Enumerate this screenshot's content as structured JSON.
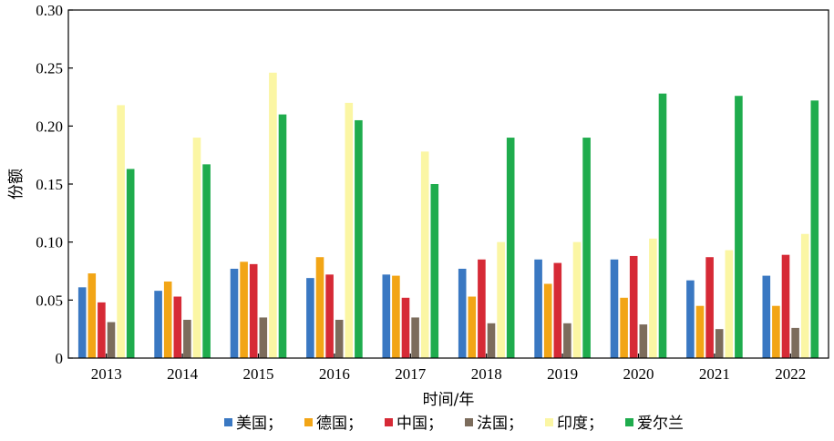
{
  "chart_data": {
    "type": "bar",
    "xlabel": "时间/年",
    "ylabel": "份额",
    "ylim": [
      0,
      0.3
    ],
    "y_ticks": [
      "0",
      "0.05",
      "0.10",
      "0.15",
      "0.20",
      "0.25",
      "0.30"
    ],
    "y_tick_values": [
      0,
      0.05,
      0.1,
      0.15,
      0.2,
      0.25,
      0.3
    ],
    "categories": [
      "2013",
      "2014",
      "2015",
      "2016",
      "2017",
      "2018",
      "2019",
      "2020",
      "2021",
      "2022"
    ],
    "grid": false,
    "legend_position": "bottom",
    "series": [
      {
        "name": "美国；",
        "color": "#3a78c2",
        "values": [
          0.061,
          0.058,
          0.077,
          0.069,
          0.072,
          0.077,
          0.085,
          0.085,
          0.067,
          0.071
        ]
      },
      {
        "name": "德国；",
        "color": "#f2a516",
        "values": [
          0.073,
          0.066,
          0.083,
          0.087,
          0.071,
          0.053,
          0.064,
          0.052,
          0.045,
          0.045
        ]
      },
      {
        "name": "中国；",
        "color": "#d62a36",
        "values": [
          0.048,
          0.053,
          0.081,
          0.072,
          0.052,
          0.085,
          0.082,
          0.088,
          0.087,
          0.089
        ]
      },
      {
        "name": "法国；",
        "color": "#7c6c5c",
        "values": [
          0.031,
          0.033,
          0.035,
          0.033,
          0.035,
          0.03,
          0.03,
          0.029,
          0.025,
          0.026
        ]
      },
      {
        "name": "印度；",
        "color": "#fbf6a4",
        "values": [
          0.218,
          0.19,
          0.246,
          0.22,
          0.178,
          0.1,
          0.1,
          0.103,
          0.093,
          0.107
        ]
      },
      {
        "name": "爱尔兰",
        "color": "#1fac4d",
        "values": [
          0.163,
          0.167,
          0.21,
          0.205,
          0.15,
          0.19,
          0.19,
          0.228,
          0.226,
          0.222
        ]
      }
    ]
  }
}
